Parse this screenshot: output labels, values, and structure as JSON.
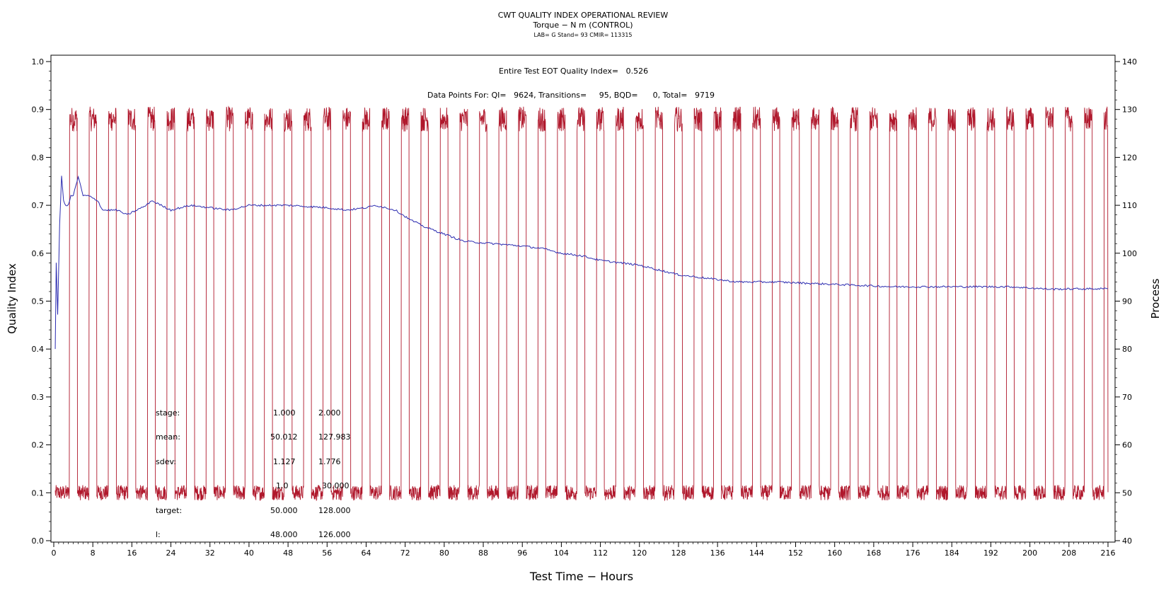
{
  "header": {
    "title": "CWT QUALITY INDEX OPERATIONAL REVIEW",
    "subtitle": "Torque − N m (CONTROL)",
    "lab_line": "LAB= G Stand= 93 CMIR= 113315"
  },
  "annotations": {
    "eot_quality": "Entire Test EOT Quality Index=   0.526",
    "data_points": "Data Points For: QI=   9624, Transitions=     95, BQD=      0, Total=   9719"
  },
  "stats_table": {
    "rows": [
      {
        "label": "stage:",
        "v1": "1.000",
        "v2": "2.000"
      },
      {
        "label": "mean:",
        "v1": "50.012",
        "v2": "127.983"
      },
      {
        "label": "sdev:",
        "v1": "1.127",
        "v2": "1.776"
      },
      {
        "label": "",
        "v1": "1.0",
        "v2": "30.000"
      },
      {
        "label": "target:",
        "v1": "50.000",
        "v2": "128.000"
      },
      {
        "label": "l:",
        "v1": "48.000",
        "v2": "126.000"
      }
    ]
  },
  "colors": {
    "quality_index": "#2b2bb0",
    "process": "#b0182c"
  },
  "chart_data": {
    "type": "line",
    "xlabel": "Test Time − Hours",
    "ylabel": "Quality Index",
    "y2label": "Process",
    "xlim": [
      0,
      216
    ],
    "ylim": [
      0.0,
      1.0
    ],
    "y2lim": [
      40,
      140
    ],
    "xticks": [
      0,
      8,
      16,
      24,
      32,
      40,
      48,
      56,
      64,
      72,
      80,
      88,
      96,
      104,
      112,
      120,
      128,
      136,
      144,
      152,
      160,
      168,
      176,
      184,
      192,
      200,
      208,
      216
    ],
    "yticks": [
      0.0,
      0.1,
      0.2,
      0.3,
      0.4,
      0.5,
      0.6,
      0.7,
      0.8,
      0.9,
      1.0
    ],
    "y2ticks": [
      40,
      50,
      60,
      70,
      80,
      90,
      100,
      110,
      120,
      130,
      140
    ],
    "series": [
      {
        "axis": "left",
        "points": [
          [
            0.3,
            0.4
          ],
          [
            0.5,
            0.58
          ],
          [
            0.8,
            0.47
          ],
          [
            1.2,
            0.66
          ],
          [
            1.6,
            0.76
          ],
          [
            2.0,
            0.71
          ],
          [
            2.5,
            0.7
          ],
          [
            3.0,
            0.7
          ],
          [
            3.5,
            0.72
          ],
          [
            4.0,
            0.72
          ],
          [
            5.0,
            0.76
          ],
          [
            6.0,
            0.72
          ],
          [
            7.0,
            0.72
          ],
          [
            9.0,
            0.71
          ],
          [
            10.0,
            0.69
          ],
          [
            13.0,
            0.69
          ],
          [
            15.0,
            0.68
          ],
          [
            17.0,
            0.69
          ],
          [
            19.0,
            0.7
          ],
          [
            20.0,
            0.71
          ],
          [
            24.0,
            0.69
          ],
          [
            28.0,
            0.7
          ],
          [
            36.0,
            0.69
          ],
          [
            40.0,
            0.7
          ],
          [
            48.0,
            0.7
          ],
          [
            56.0,
            0.695
          ],
          [
            60.0,
            0.69
          ],
          [
            64.0,
            0.695
          ],
          [
            66.0,
            0.7
          ],
          [
            70.0,
            0.69
          ],
          [
            73.0,
            0.67
          ],
          [
            76.0,
            0.655
          ],
          [
            80.0,
            0.64
          ],
          [
            84.0,
            0.625
          ],
          [
            90.0,
            0.62
          ],
          [
            96.0,
            0.615
          ],
          [
            100.0,
            0.61
          ],
          [
            104.0,
            0.6
          ],
          [
            108.0,
            0.595
          ],
          [
            112.0,
            0.585
          ],
          [
            116.0,
            0.58
          ],
          [
            120.0,
            0.575
          ],
          [
            124.0,
            0.565
          ],
          [
            128.0,
            0.555
          ],
          [
            132.0,
            0.55
          ],
          [
            136.0,
            0.545
          ],
          [
            140.0,
            0.54
          ],
          [
            148.0,
            0.54
          ],
          [
            160.0,
            0.535
          ],
          [
            172.0,
            0.53
          ],
          [
            184.0,
            0.53
          ],
          [
            196.0,
            0.53
          ],
          [
            204.0,
            0.525
          ],
          [
            216.0,
            0.526
          ]
        ]
      },
      {
        "axis": "right",
        "low_level": 50,
        "high_level": 128,
        "high_windows": [
          [
            3.2,
            4.8
          ],
          [
            7.2,
            8.8
          ],
          [
            11.2,
            12.8
          ],
          [
            15.2,
            16.8
          ],
          [
            19.2,
            20.8
          ],
          [
            23.2,
            24.8
          ],
          [
            27.2,
            28.8
          ],
          [
            31.2,
            32.8
          ],
          [
            35.2,
            36.8
          ],
          [
            39.2,
            40.8
          ],
          [
            43.2,
            44.8
          ],
          [
            47.2,
            48.8
          ],
          [
            51.2,
            52.8
          ],
          [
            55.2,
            56.8
          ],
          [
            59.2,
            60.8
          ],
          [
            63.2,
            64.8
          ],
          [
            67.2,
            68.8
          ],
          [
            71.2,
            72.8
          ],
          [
            75.2,
            76.8
          ],
          [
            79.2,
            80.8
          ],
          [
            83.2,
            84.8
          ],
          [
            87.2,
            88.8
          ],
          [
            91.2,
            92.8
          ],
          [
            95.2,
            96.8
          ],
          [
            99.2,
            100.8
          ],
          [
            103.2,
            104.8
          ],
          [
            107.2,
            108.8
          ],
          [
            111.2,
            112.8
          ],
          [
            115.2,
            116.8
          ],
          [
            119.2,
            120.8
          ],
          [
            123.2,
            124.8
          ],
          [
            127.2,
            128.8
          ],
          [
            131.2,
            132.8
          ],
          [
            135.2,
            136.8
          ],
          [
            139.2,
            140.8
          ],
          [
            143.2,
            144.8
          ],
          [
            147.2,
            148.8
          ],
          [
            151.2,
            152.8
          ],
          [
            155.2,
            156.8
          ],
          [
            159.2,
            160.8
          ],
          [
            163.2,
            164.8
          ],
          [
            167.2,
            168.8
          ],
          [
            171.2,
            172.8
          ],
          [
            175.2,
            176.8
          ],
          [
            179.2,
            180.8
          ],
          [
            183.2,
            184.8
          ],
          [
            187.2,
            188.8
          ],
          [
            191.2,
            192.8
          ],
          [
            195.2,
            196.8
          ],
          [
            199.2,
            200.8
          ],
          [
            203.2,
            204.8
          ],
          [
            207.2,
            208.8
          ],
          [
            211.2,
            212.8
          ],
          [
            215.2,
            216.0
          ]
        ]
      }
    ]
  }
}
